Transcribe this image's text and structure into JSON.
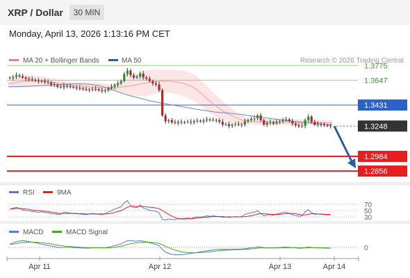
{
  "header": {
    "title": "XRP / Dollar",
    "timeframe": "30 MIN",
    "datetime": "Monday, April 13, 2026 1:13:16 PM CET"
  },
  "legend": {
    "ma20_label": "MA 20 + Bollinger Bands",
    "ma50_label": "MA 50",
    "credit": "Research © 2026 Trading Central",
    "ma20_color": "#f08080",
    "ma50_color": "#2a5aa8"
  },
  "chart_data": {
    "type": "candlestick",
    "price_ylim": [
      1.276,
      1.394
    ],
    "x_ticks": [
      "Apr 11",
      "Apr 12",
      "Apr 13",
      "Apr 14"
    ],
    "closes": [
      1.3665,
      1.3675,
      1.369,
      1.3682,
      1.367,
      1.366,
      1.3655,
      1.365,
      1.3645,
      1.364,
      1.3642,
      1.363,
      1.3625,
      1.361,
      1.3605,
      1.359,
      1.3585,
      1.36,
      1.3595,
      1.359,
      1.3585,
      1.358,
      1.3575,
      1.357,
      1.3565,
      1.3568,
      1.3572,
      1.3568,
      1.356,
      1.3555,
      1.356,
      1.3575,
      1.359,
      1.3605,
      1.362,
      1.364,
      1.37,
      1.373,
      1.369,
      1.367,
      1.368,
      1.3705,
      1.367,
      1.366,
      1.364,
      1.362,
      1.361,
      1.356,
      1.334,
      1.329,
      1.33,
      1.328,
      1.3275,
      1.3285,
      1.328,
      1.3283,
      1.3285,
      1.328,
      1.329,
      1.3295,
      1.3288,
      1.3298,
      1.3305,
      1.33,
      1.3302,
      1.3298,
      1.3285,
      1.326,
      1.3265,
      1.325,
      1.326,
      1.3265,
      1.3258,
      1.3262,
      1.329,
      1.33,
      1.331,
      1.3315,
      1.334,
      1.33,
      1.326,
      1.3275,
      1.328,
      1.327,
      1.3285,
      1.329,
      1.33,
      1.3305,
      1.329,
      1.327,
      1.3255,
      1.3245,
      1.325,
      1.33,
      1.333,
      1.3285,
      1.326,
      1.3265,
      1.326,
      1.3255,
      1.325,
      1.3248
    ],
    "ma20": [
      1.3615,
      1.3625,
      1.3635,
      1.364,
      1.364,
      1.3638,
      1.3633,
      1.3628,
      1.362,
      1.3612,
      1.3603,
      1.3598,
      1.3593,
      1.3588,
      1.3584,
      1.358,
      1.358,
      1.3585,
      1.3592,
      1.36,
      1.361,
      1.362,
      1.363,
      1.3638,
      1.364,
      1.3638,
      1.363,
      1.362,
      1.36,
      1.357,
      1.352,
      1.347,
      1.3425,
      1.3385,
      1.3352,
      1.3325,
      1.3302,
      1.329,
      1.3285,
      1.3283,
      1.3283,
      1.3283,
      1.3283,
      1.3282,
      1.3281,
      1.328,
      1.3279,
      1.3278,
      1.3278,
      1.3278,
      1.3278
    ],
    "ma50": [
      1.359,
      1.359,
      1.3592,
      1.3595,
      1.3597,
      1.36,
      1.3603,
      1.3607,
      1.361,
      1.3613,
      1.3615,
      1.3615,
      1.3613,
      1.3608,
      1.36,
      1.3585,
      1.3565,
      1.3545,
      1.3525,
      1.351,
      1.3495,
      1.348,
      1.3467,
      1.3455,
      1.3445,
      1.3435,
      1.3425,
      1.3415,
      1.3405,
      1.3395,
      1.3385,
      1.3378,
      1.337,
      1.3365,
      1.336,
      1.3355,
      1.3348,
      1.334,
      1.3333,
      1.3325,
      1.3317,
      1.331,
      1.3303,
      1.3296,
      1.329,
      1.3284,
      1.3278,
      1.3272,
      1.3267,
      1.3262,
      1.3257
    ],
    "bb_width": [
      0.003,
      0.004,
      0.005,
      0.0055,
      0.005,
      0.0045,
      0.004,
      0.0035,
      0.003,
      0.003,
      0.003,
      0.0035,
      0.004,
      0.0042,
      0.004,
      0.0035,
      0.003,
      0.004,
      0.006,
      0.0085,
      0.01,
      0.011,
      0.011,
      0.0105,
      0.01,
      0.01,
      0.0105,
      0.011,
      0.0115,
      0.0115,
      0.011,
      0.0105,
      0.0095,
      0.0085,
      0.007,
      0.0055,
      0.004,
      0.003,
      0.0025,
      0.0025,
      0.0025,
      0.0025,
      0.0025,
      0.0025,
      0.0025,
      0.0025,
      0.0025,
      0.0025,
      0.0025,
      0.0025,
      0.0025
    ],
    "levels": [
      {
        "label": "1.3775",
        "value": 1.3775,
        "kind": "resistance"
      },
      {
        "label": "1.3647",
        "value": 1.3647,
        "kind": "resistance"
      },
      {
        "label": "1.3431",
        "value": 1.3431,
        "kind": "pivot"
      },
      {
        "label": "1.3248",
        "value": 1.3248,
        "kind": "last"
      },
      {
        "label": "1.2984",
        "value": 1.2984,
        "kind": "target"
      },
      {
        "label": "1.2856",
        "value": 1.2856,
        "kind": "target"
      }
    ],
    "forecast_arrow": {
      "from": 1.3248,
      "to": 1.2856
    },
    "rsi": {
      "legend": [
        "RSI",
        "9MA"
      ],
      "ticks": [
        "70",
        "50",
        "30"
      ],
      "values": [
        55,
        58,
        60,
        57,
        52,
        50,
        49,
        47,
        46,
        45,
        46,
        44,
        43,
        40,
        40,
        38,
        38,
        45,
        44,
        42,
        40,
        40,
        39,
        38,
        37,
        39,
        41,
        40,
        38,
        37,
        40,
        46,
        50,
        55,
        58,
        62,
        75,
        82,
        66,
        59,
        60,
        68,
        58,
        55,
        51,
        49,
        48,
        43,
        22,
        20,
        23,
        22,
        21,
        25,
        24,
        25,
        26,
        25,
        28,
        30,
        29,
        31,
        33,
        32,
        33,
        32,
        31,
        28,
        30,
        28,
        30,
        31,
        30,
        31,
        38,
        41,
        43,
        45,
        50,
        41,
        33,
        36,
        37,
        35,
        39,
        41,
        44,
        45,
        41,
        37,
        34,
        32,
        33,
        46,
        53,
        43,
        38,
        39,
        38,
        37,
        36,
        36
      ],
      "ma_values": [
        55,
        56,
        57,
        57,
        56,
        55,
        54,
        52,
        51,
        50,
        49,
        48,
        47,
        45,
        44,
        42,
        41,
        41,
        41,
        41,
        41,
        41,
        40,
        40,
        39,
        39,
        39,
        39,
        39,
        39,
        39,
        40,
        42,
        44,
        47,
        50,
        55,
        61,
        64,
        64,
        63,
        63,
        63,
        62,
        61,
        60,
        58,
        56,
        50,
        44,
        38,
        32,
        28,
        24,
        23,
        23,
        24,
        24,
        25,
        26,
        27,
        28,
        29,
        30,
        31,
        31,
        31,
        31,
        30,
        30,
        30,
        30,
        30,
        30,
        31,
        32,
        34,
        36,
        39,
        40,
        40,
        39,
        38,
        38,
        37,
        38,
        39,
        40,
        41,
        41,
        40,
        38,
        36,
        36,
        38,
        40,
        40,
        39,
        39,
        38,
        38,
        37
      ]
    },
    "macd": {
      "legend": [
        "MACD",
        "MACD Signal"
      ],
      "zero_label": "0",
      "values": [
        3.0,
        4.2,
        5.2,
        5.8,
        6.0,
        5.8,
        5.3,
        4.8,
        4.2,
        3.6,
        3.0,
        2.4,
        1.8,
        1.2,
        0.7,
        0.2,
        -0.1,
        0.0,
        0.2,
        0.1,
        -0.1,
        -0.3,
        -0.4,
        -0.6,
        -0.7,
        -0.6,
        -0.4,
        -0.2,
        -0.3,
        -0.5,
        -0.4,
        0.1,
        0.8,
        1.6,
        2.4,
        3.2,
        4.6,
        6.0,
        6.2,
        5.8,
        5.6,
        6.0,
        5.6,
        5.0,
        4.2,
        3.4,
        2.6,
        1.4,
        -1.8,
        -4.2,
        -5.4,
        -6.2,
        -6.6,
        -6.6,
        -6.5,
        -6.2,
        -5.8,
        -5.5,
        -5.0,
        -4.5,
        -4.0,
        -3.5,
        -3.0,
        -2.6,
        -2.2,
        -1.9,
        -1.7,
        -1.8,
        -1.7,
        -1.8,
        -1.7,
        -1.6,
        -1.6,
        -1.5,
        -1.1,
        -0.7,
        -0.3,
        0.0,
        0.5,
        0.3,
        -0.3,
        -0.4,
        -0.4,
        -0.5,
        -0.3,
        -0.1,
        0.1,
        0.3,
        0.2,
        -0.1,
        -0.4,
        -0.7,
        -0.7,
        -0.2,
        0.4,
        0.1,
        -0.3,
        -0.4,
        -0.5,
        -0.6,
        -0.7,
        -0.8
      ],
      "signal": [
        2.6,
        3.0,
        3.5,
        4.0,
        4.4,
        4.7,
        4.8,
        4.8,
        4.7,
        4.5,
        4.2,
        3.9,
        3.5,
        3.1,
        2.6,
        2.1,
        1.7,
        1.3,
        1.0,
        0.8,
        0.6,
        0.4,
        0.2,
        0.0,
        -0.1,
        -0.2,
        -0.3,
        -0.3,
        -0.3,
        -0.3,
        -0.3,
        -0.3,
        -0.1,
        0.2,
        0.6,
        1.1,
        1.8,
        2.6,
        3.3,
        3.8,
        4.1,
        4.5,
        4.7,
        4.8,
        4.7,
        4.4,
        4.1,
        3.5,
        2.4,
        1.1,
        -0.2,
        -1.4,
        -2.4,
        -3.2,
        -3.9,
        -4.3,
        -4.6,
        -4.8,
        -4.8,
        -4.7,
        -4.6,
        -4.4,
        -4.1,
        -3.8,
        -3.5,
        -3.2,
        -2.9,
        -2.7,
        -2.5,
        -2.4,
        -2.2,
        -2.1,
        -2.0,
        -1.9,
        -1.7,
        -1.5,
        -1.3,
        -1.0,
        -0.7,
        -0.5,
        -0.5,
        -0.5,
        -0.5,
        -0.5,
        -0.4,
        -0.4,
        -0.3,
        -0.2,
        -0.1,
        -0.1,
        -0.2,
        -0.3,
        -0.4,
        -0.4,
        -0.2,
        -0.2,
        -0.2,
        -0.3,
        -0.3,
        -0.4,
        -0.5,
        -0.6
      ]
    }
  }
}
